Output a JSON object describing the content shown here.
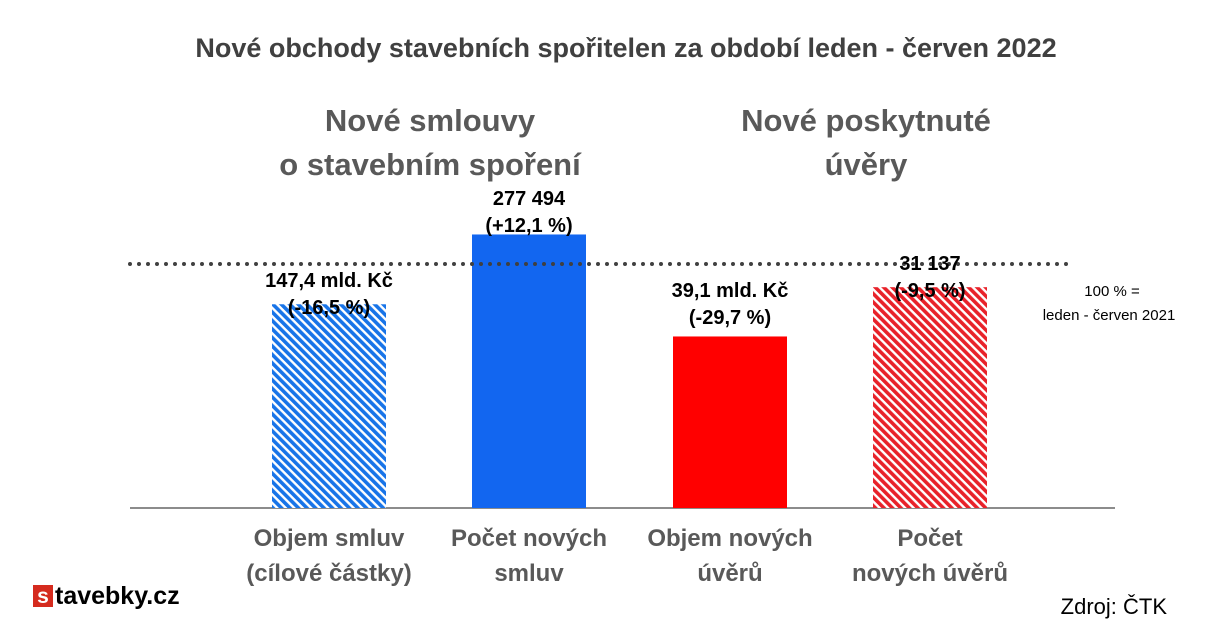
{
  "chart_data": {
    "type": "bar",
    "title": "Nové obchody stavebních spořitelen za období leden - červen 2022",
    "groups": [
      {
        "title_lines": [
          "Nové smlouvy",
          "o stavebním spoření"
        ]
      },
      {
        "title_lines": [
          "Nové poskytnuté",
          "úvěry"
        ]
      }
    ],
    "categories": [
      [
        "Objem smluv",
        "(cílové částky)"
      ],
      [
        "Počet  nových",
        "smluv"
      ],
      [
        "Objem nových",
        "úvěrů"
      ],
      [
        "Počet",
        "nových úvěrů"
      ]
    ],
    "values": [
      83.5,
      112.1,
      70.3,
      90.5
    ],
    "data_labels": [
      [
        "147,4 mld. Kč",
        "(-16,5 %)"
      ],
      [
        "277 494",
        "(+12,1 %)"
      ],
      [
        "39,1 mld. Kč",
        "(-29,7 %)"
      ],
      [
        "31 137",
        "(-9,5 %)"
      ]
    ],
    "bar_styles": [
      "hatched",
      "solid",
      "solid",
      "hatched"
    ],
    "bar_colors": [
      "#1874E8",
      "#1266F0",
      "#FF0000",
      "#E8222A"
    ],
    "reference_line": {
      "value": 100,
      "style": "dotted",
      "label_lines": [
        "100 % =",
        "leden - červen  2021"
      ]
    },
    "ylim": [
      0,
      125
    ],
    "grid": false,
    "legend": "none",
    "source": "Zdroj: ČTK",
    "logo": {
      "badge": "s",
      "text": "tavebky.cz",
      "color": "#D52B1E"
    }
  }
}
